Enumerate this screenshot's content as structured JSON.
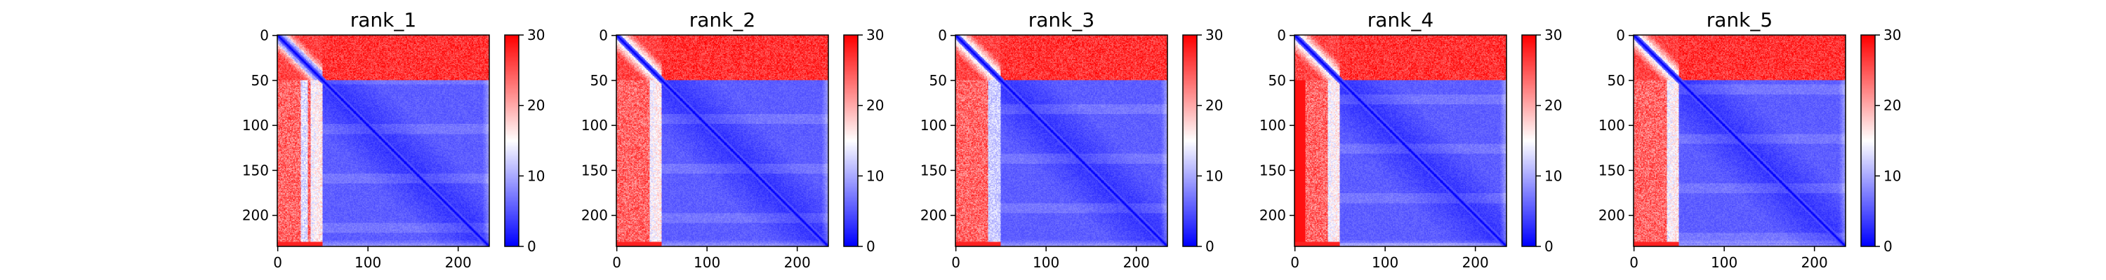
{
  "chart_data": {
    "type": "heatmap",
    "description_note": "",
    "panels": [
      {
        "title": "rank_1",
        "variant": 1
      },
      {
        "title": "rank_2",
        "variant": 2
      },
      {
        "title": "rank_3",
        "variant": 3
      },
      {
        "title": "rank_4",
        "variant": 4
      },
      {
        "title": "rank_5",
        "variant": 5
      }
    ],
    "x_ticks": [
      0,
      100,
      200
    ],
    "y_ticks": [
      0,
      50,
      100,
      150,
      200
    ],
    "x_tick_labels": [
      "0",
      "100",
      "200"
    ],
    "y_tick_labels": [
      "0",
      "50",
      "100",
      "150",
      "200"
    ],
    "matrix_size": 235,
    "domain_boundary": 50,
    "colorbar": {
      "min": 0,
      "max": 30,
      "ticks": [
        0,
        10,
        20,
        30
      ],
      "tick_labels": [
        "0",
        "10",
        "20",
        "30"
      ],
      "colormap": "bwr",
      "colors": {
        "low": "#0000ff",
        "mid": "#ffffff",
        "high": "#ff0000"
      }
    }
  }
}
